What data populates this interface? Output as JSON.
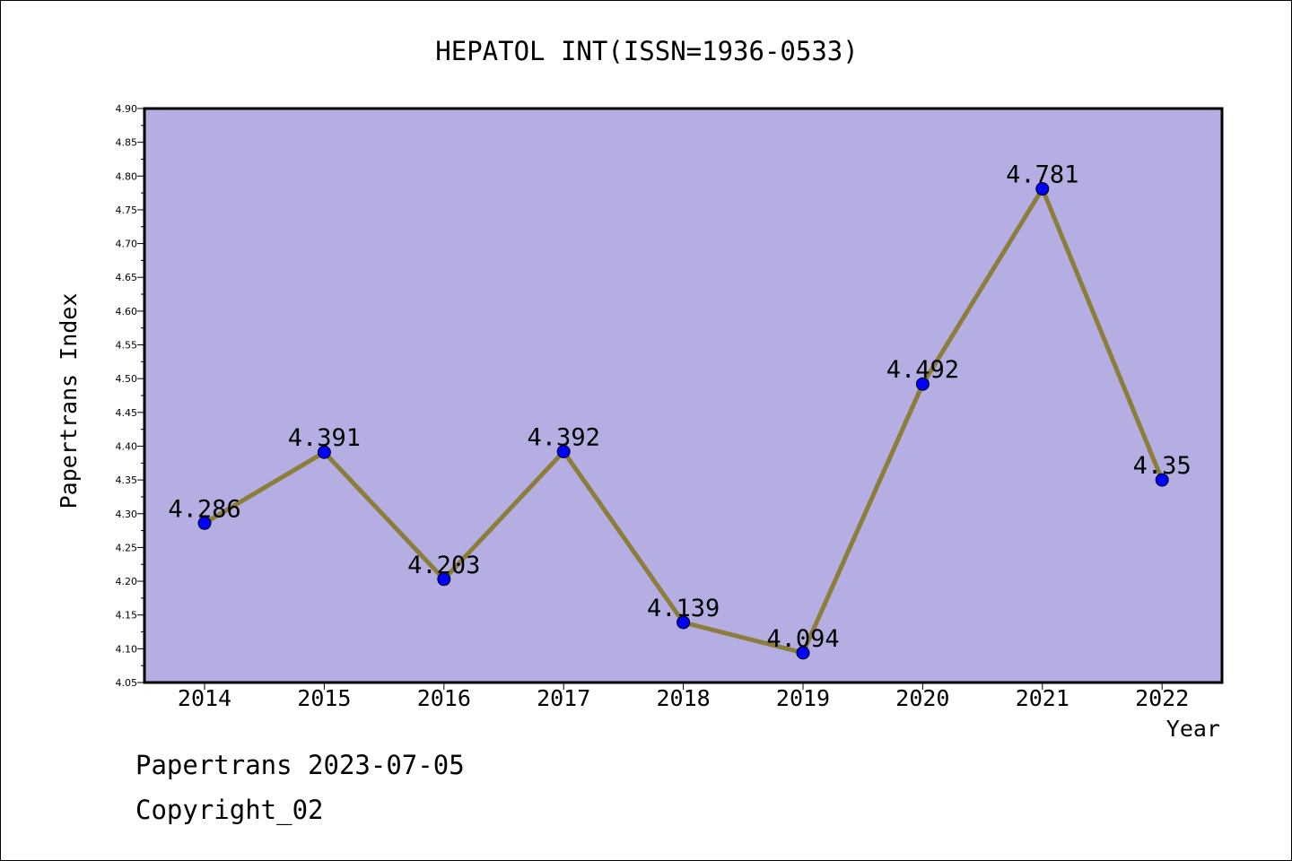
{
  "chart_data": {
    "type": "line",
    "title": "HEPATOL INT(ISSN=1936-0533)",
    "xlabel": "Year",
    "ylabel": "Papertrans Index",
    "categories": [
      "2014",
      "2015",
      "2016",
      "2017",
      "2018",
      "2019",
      "2020",
      "2021",
      "2022"
    ],
    "series": [
      {
        "values": [
          4.286,
          4.391,
          4.203,
          4.392,
          4.139,
          4.094,
          4.492,
          4.781,
          4.35
        ],
        "data_labels": [
          "4.286",
          "4.391",
          "4.203",
          "4.392",
          "4.139",
          "4.094",
          "4.492",
          "4.781",
          "4.35"
        ],
        "line_color": "#8b7d3a",
        "marker_color": "#0000ff"
      }
    ],
    "ylim": [
      4.05,
      4.9
    ],
    "yticks": [
      "4.05",
      "4.10",
      "4.15",
      "4.20",
      "4.25",
      "4.30",
      "4.35",
      "4.40",
      "4.45",
      "4.50",
      "4.55",
      "4.60",
      "4.65",
      "4.70",
      "4.75",
      "4.80",
      "4.85",
      "4.90"
    ],
    "plot_background": "#b4aee2",
    "grid": false,
    "legend": "none"
  },
  "footer": {
    "line1": "Papertrans 2023-07-05",
    "line2": "Copyright_02"
  }
}
